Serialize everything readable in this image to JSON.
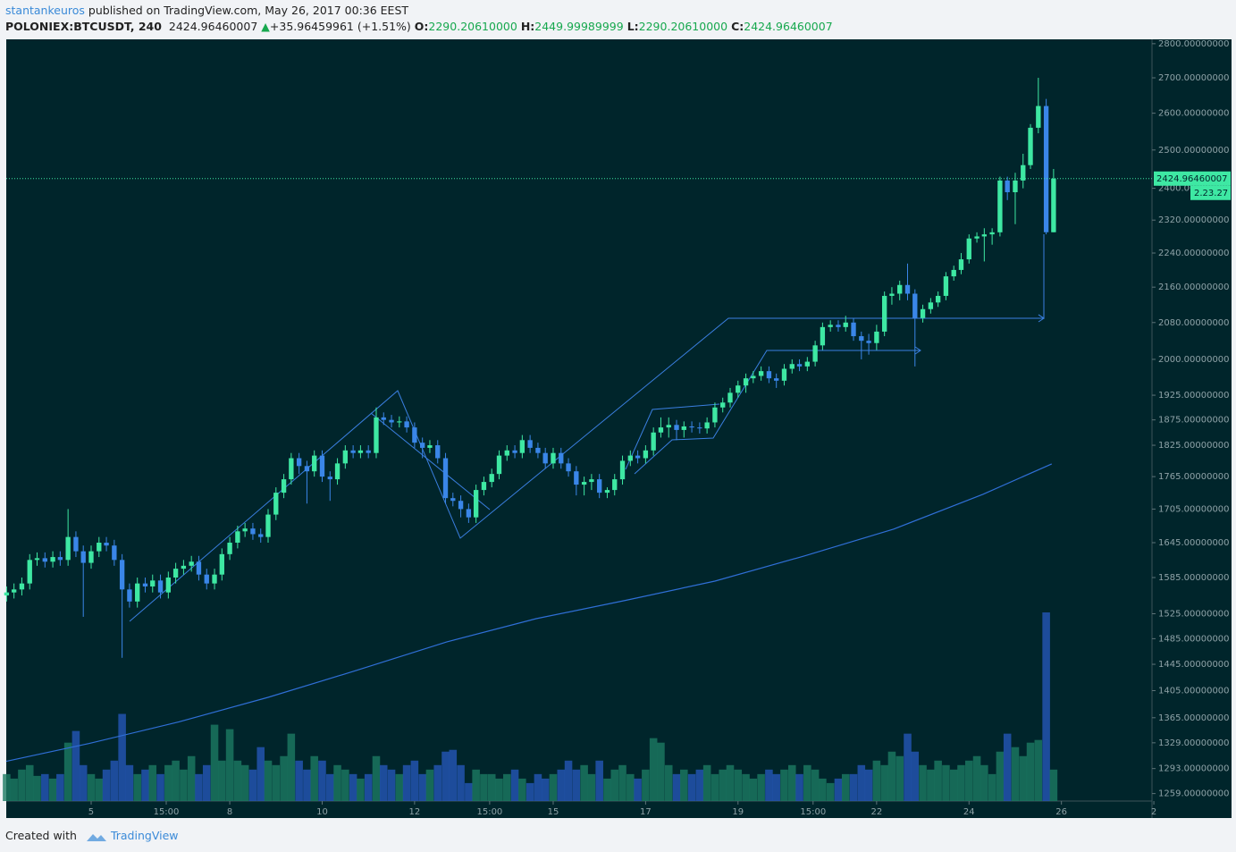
{
  "header": {
    "author": "stantankeuros",
    "published": "published on TradingView.com, May 26, 2017 00:36 EEST",
    "symbol": "POLONIEX:BTCUSDT, 240",
    "last": "2424.96460007",
    "arrow": "▲",
    "change": "+35.96459961 (+1.51%)",
    "o_label": "O:",
    "o": "2290.20610000",
    "h_label": "H:",
    "h": "2449.99989999",
    "l_label": "L:",
    "l": "2290.20610000",
    "c_label": "C:",
    "c": "2424.96460007",
    "countdown": "2.23.27"
  },
  "footer": {
    "created": "Created with",
    "brand": "TradingView"
  },
  "chart_data": {
    "type": "candlestick",
    "log": true,
    "up_color": "#3ee8a3",
    "down_color": "#3a86e8",
    "xlim": [
      3.1625,
      27.96
    ],
    "ylim": [
      1249,
      2813
    ],
    "xticks": [
      5,
      {
        "value": 6.625,
        "label": "15:00"
      },
      8,
      10,
      12,
      {
        "value": 13.625,
        "label": "15:00"
      },
      15,
      17,
      19,
      {
        "value": 20.625,
        "label": "15:00"
      },
      22,
      24,
      26,
      {
        "value": 28,
        "label": "2"
      }
    ],
    "yticks": [
      {
        "value": 1259,
        "label": "1259.00000000"
      },
      {
        "value": 1293,
        "label": "1293.00000000"
      },
      {
        "value": 1329,
        "label": "1329.00000000"
      },
      {
        "value": 1365,
        "label": "1365.00000000"
      },
      {
        "value": 1405,
        "label": "1405.00000000"
      },
      {
        "value": 1445,
        "label": "1445.00000000"
      },
      {
        "value": 1485,
        "label": "1485.00000000"
      },
      {
        "value": 1525,
        "label": "1525.00000000"
      },
      {
        "value": 1585,
        "label": "1585.00000000"
      },
      {
        "value": 1645,
        "label": "1645.00000000"
      },
      {
        "value": 1705,
        "label": "1705.00000000"
      },
      {
        "value": 1765,
        "label": "1765.00000000"
      },
      {
        "value": 1825,
        "label": "1825.00000000"
      },
      {
        "value": 1875,
        "label": "1875.00000000"
      },
      {
        "value": 1925,
        "label": "1925.00000000"
      },
      {
        "value": 2000,
        "label": "2000.00000000"
      },
      {
        "value": 2080,
        "label": "2080.00000000"
      },
      {
        "value": 2160,
        "label": "2160.00000000"
      },
      {
        "value": 2240,
        "label": "2240.00000000"
      },
      {
        "value": 2320,
        "label": "2320.00000000"
      },
      {
        "value": 2400,
        "label": "2400.00000000"
      },
      {
        "value": 2500,
        "label": "2500.00000000"
      },
      {
        "value": 2600,
        "label": "2600.00000000"
      },
      {
        "value": 2700,
        "label": "2700.00000000"
      },
      {
        "value": 2800,
        "label": "2800.00000000"
      }
    ],
    "x": [
      3.17,
      3.33,
      3.5,
      3.67,
      3.83,
      4,
      4.17,
      4.33,
      4.5,
      4.67,
      4.83,
      5,
      5.17,
      5.33,
      5.5,
      5.67,
      5.83,
      6,
      6.17,
      6.33,
      6.5,
      6.67,
      6.83,
      7,
      7.17,
      7.33,
      7.5,
      7.67,
      7.83,
      8,
      8.17,
      8.33,
      8.5,
      8.67,
      8.83,
      9,
      9.17,
      9.33,
      9.5,
      9.67,
      9.83,
      10,
      10.17,
      10.33,
      10.5,
      10.67,
      10.83,
      11,
      11.17,
      11.33,
      11.5,
      11.67,
      11.83,
      12,
      12.17,
      12.33,
      12.5,
      12.67,
      12.83,
      13,
      13.17,
      13.33,
      13.5,
      13.67,
      13.83,
      14,
      14.17,
      14.33,
      14.5,
      14.67,
      14.83,
      15,
      15.17,
      15.33,
      15.5,
      15.67,
      15.83,
      16,
      16.17,
      16.33,
      16.5,
      16.67,
      16.83,
      17,
      17.17,
      17.33,
      17.5,
      17.67,
      17.83,
      18,
      18.17,
      18.33,
      18.5,
      18.67,
      18.83,
      19,
      19.17,
      19.33,
      19.5,
      19.67,
      19.83,
      20,
      20.17,
      20.33,
      20.5,
      20.67,
      20.83,
      21,
      21.17,
      21.33,
      21.5,
      21.67,
      21.83,
      22,
      22.17,
      22.33,
      22.5,
      22.67,
      22.83,
      23,
      23.17,
      23.33,
      23.5,
      23.67,
      23.83,
      24,
      24.17,
      24.33,
      24.5,
      24.67,
      24.83,
      25,
      25.17,
      25.33,
      25.5,
      25.67,
      25.83
    ],
    "open": [
      1555,
      1560,
      1565,
      1575,
      1615,
      1618,
      1612,
      1620,
      1615,
      1655,
      1630,
      1610,
      1630,
      1645,
      1640,
      1615,
      1565,
      1545,
      1575,
      1570,
      1580,
      1560,
      1585,
      1600,
      1605,
      1612,
      1590,
      1575,
      1590,
      1625,
      1645,
      1665,
      1670,
      1660,
      1655,
      1695,
      1735,
      1760,
      1800,
      1785,
      1775,
      1805,
      1765,
      1760,
      1790,
      1815,
      1810,
      1815,
      1810,
      1880,
      1875,
      1870,
      1872,
      1860,
      1830,
      1820,
      1825,
      1800,
      1725,
      1720,
      1705,
      1690,
      1740,
      1755,
      1770,
      1805,
      1815,
      1810,
      1835,
      1820,
      1810,
      1790,
      1810,
      1790,
      1775,
      1750,
      1755,
      1760,
      1735,
      1740,
      1760,
      1795,
      1805,
      1800,
      1815,
      1850,
      1860,
      1865,
      1855,
      1862,
      1860,
      1858,
      1870,
      1900,
      1910,
      1930,
      1945,
      1960,
      1965,
      1975,
      1960,
      1955,
      1980,
      1990,
      1985,
      1995,
      2030,
      2070,
      2075,
      2070,
      2080,
      2050,
      2040,
      2035,
      2060,
      2140,
      2145,
      2165,
      2145,
      2090,
      2110,
      2125,
      2140,
      2185,
      2200,
      2225,
      2275,
      2280,
      2285,
      2290,
      2420,
      2390,
      2420,
      2460,
      2560,
      2620,
      2290.2061
    ],
    "high": [
      1570,
      1575,
      1585,
      1625,
      1628,
      1628,
      1630,
      1630,
      1705,
      1665,
      1640,
      1640,
      1655,
      1655,
      1650,
      1625,
      1575,
      1585,
      1585,
      1590,
      1590,
      1595,
      1610,
      1615,
      1622,
      1622,
      1600,
      1600,
      1635,
      1655,
      1675,
      1680,
      1680,
      1670,
      1705,
      1745,
      1770,
      1810,
      1810,
      1795,
      1815,
      1815,
      1775,
      1800,
      1825,
      1825,
      1825,
      1825,
      1900,
      1890,
      1885,
      1882,
      1882,
      1870,
      1840,
      1835,
      1835,
      1810,
      1735,
      1730,
      1715,
      1750,
      1765,
      1780,
      1815,
      1825,
      1825,
      1845,
      1845,
      1830,
      1820,
      1820,
      1820,
      1800,
      1785,
      1765,
      1770,
      1770,
      1745,
      1770,
      1805,
      1815,
      1815,
      1825,
      1860,
      1880,
      1880,
      1875,
      1872,
      1872,
      1870,
      1880,
      1910,
      1920,
      1940,
      1955,
      1970,
      1975,
      1985,
      1985,
      1970,
      1990,
      2000,
      2000,
      2005,
      2040,
      2080,
      2085,
      2085,
      2095,
      2090,
      2060,
      2055,
      2075,
      2150,
      2160,
      2175,
      2215,
      2155,
      2120,
      2135,
      2150,
      2195,
      2210,
      2240,
      2285,
      2290,
      2300,
      2300,
      2430,
      2430,
      2440,
      2490,
      2570,
      2700,
      2640,
      2449.9999
    ],
    "low": [
      1545,
      1550,
      1555,
      1565,
      1605,
      1602,
      1602,
      1605,
      1605,
      1620,
      1520,
      1600,
      1620,
      1630,
      1605,
      1455,
      1535,
      1535,
      1560,
      1560,
      1550,
      1550,
      1575,
      1590,
      1595,
      1580,
      1565,
      1565,
      1580,
      1615,
      1635,
      1655,
      1650,
      1645,
      1645,
      1685,
      1725,
      1750,
      1770,
      1715,
      1765,
      1755,
      1720,
      1750,
      1780,
      1800,
      1800,
      1800,
      1800,
      1865,
      1860,
      1860,
      1850,
      1820,
      1800,
      1810,
      1790,
      1715,
      1710,
      1690,
      1680,
      1680,
      1730,
      1745,
      1760,
      1795,
      1800,
      1800,
      1810,
      1800,
      1780,
      1780,
      1780,
      1765,
      1730,
      1730,
      1740,
      1725,
      1725,
      1730,
      1750,
      1785,
      1790,
      1790,
      1805,
      1840,
      1840,
      1835,
      1840,
      1850,
      1848,
      1848,
      1860,
      1890,
      1900,
      1920,
      1930,
      1950,
      1955,
      1950,
      1940,
      1945,
      1970,
      1975,
      1975,
      1985,
      2020,
      2060,
      2060,
      2060,
      2040,
      2000,
      2010,
      2020,
      2050,
      2120,
      2130,
      2130,
      1985,
      2080,
      2100,
      2115,
      2130,
      2175,
      2190,
      2215,
      2265,
      2220,
      2260,
      2280,
      2370,
      2310,
      2400,
      2450,
      2545,
      2285,
      2290.2061
    ],
    "close": [
      1560,
      1565,
      1575,
      1615,
      1618,
      1612,
      1620,
      1615,
      1655,
      1630,
      1610,
      1630,
      1645,
      1640,
      1615,
      1565,
      1545,
      1575,
      1570,
      1580,
      1560,
      1585,
      1600,
      1605,
      1612,
      1590,
      1575,
      1590,
      1625,
      1645,
      1665,
      1670,
      1660,
      1655,
      1695,
      1735,
      1760,
      1800,
      1785,
      1775,
      1805,
      1765,
      1760,
      1790,
      1815,
      1810,
      1815,
      1810,
      1880,
      1875,
      1870,
      1872,
      1860,
      1830,
      1820,
      1825,
      1800,
      1725,
      1720,
      1705,
      1690,
      1740,
      1755,
      1770,
      1805,
      1815,
      1810,
      1835,
      1820,
      1810,
      1790,
      1810,
      1790,
      1775,
      1750,
      1755,
      1760,
      1735,
      1740,
      1760,
      1795,
      1805,
      1800,
      1815,
      1850,
      1860,
      1865,
      1855,
      1862,
      1860,
      1858,
      1870,
      1900,
      1910,
      1930,
      1945,
      1960,
      1965,
      1975,
      1960,
      1955,
      1980,
      1990,
      1985,
      1995,
      2030,
      2070,
      2075,
      2070,
      2080,
      2050,
      2040,
      2035,
      2060,
      2140,
      2145,
      2165,
      2145,
      2090,
      2110,
      2125,
      2140,
      2185,
      2200,
      2225,
      2275,
      2280,
      2285,
      2290,
      2420,
      2390,
      2420,
      2460,
      2560,
      2620,
      2290.2061,
      2424.9646
    ],
    "volume": [
      30,
      25,
      35,
      40,
      28,
      30,
      25,
      30,
      65,
      78,
      40,
      30,
      25,
      35,
      45,
      97,
      40,
      30,
      35,
      40,
      30,
      40,
      45,
      35,
      50,
      30,
      40,
      85,
      45,
      80,
      45,
      40,
      35,
      60,
      45,
      40,
      50,
      75,
      45,
      35,
      50,
      45,
      30,
      40,
      35,
      30,
      25,
      30,
      50,
      40,
      35,
      30,
      40,
      45,
      30,
      35,
      40,
      55,
      57,
      40,
      20,
      35,
      30,
      30,
      25,
      30,
      35,
      25,
      20,
      30,
      25,
      30,
      35,
      45,
      35,
      40,
      30,
      45,
      25,
      35,
      40,
      30,
      25,
      35,
      70,
      65,
      40,
      30,
      35,
      30,
      35,
      40,
      30,
      35,
      40,
      35,
      30,
      25,
      30,
      35,
      30,
      35,
      40,
      30,
      40,
      35,
      25,
      20,
      25,
      30,
      30,
      40,
      35,
      45,
      40,
      55,
      50,
      75,
      55,
      40,
      35,
      45,
      40,
      35,
      40,
      45,
      50,
      40,
      30,
      55,
      75,
      60,
      50,
      65,
      68,
      210,
      35
    ],
    "overlays": [
      {
        "color": "#2f6fd6",
        "x": [
          3.16,
          4.96,
          6.9,
          8.83,
          10.76,
          12.7,
          14.63,
          16.57,
          18.5,
          20.44,
          22.37,
          24.3,
          25.79
        ],
        "values": [
          1303,
          1328,
          1359,
          1395,
          1436,
          1480,
          1517,
          1547,
          1579,
          1622,
          1669,
          1732,
          1789
        ]
      }
    ]
  }
}
